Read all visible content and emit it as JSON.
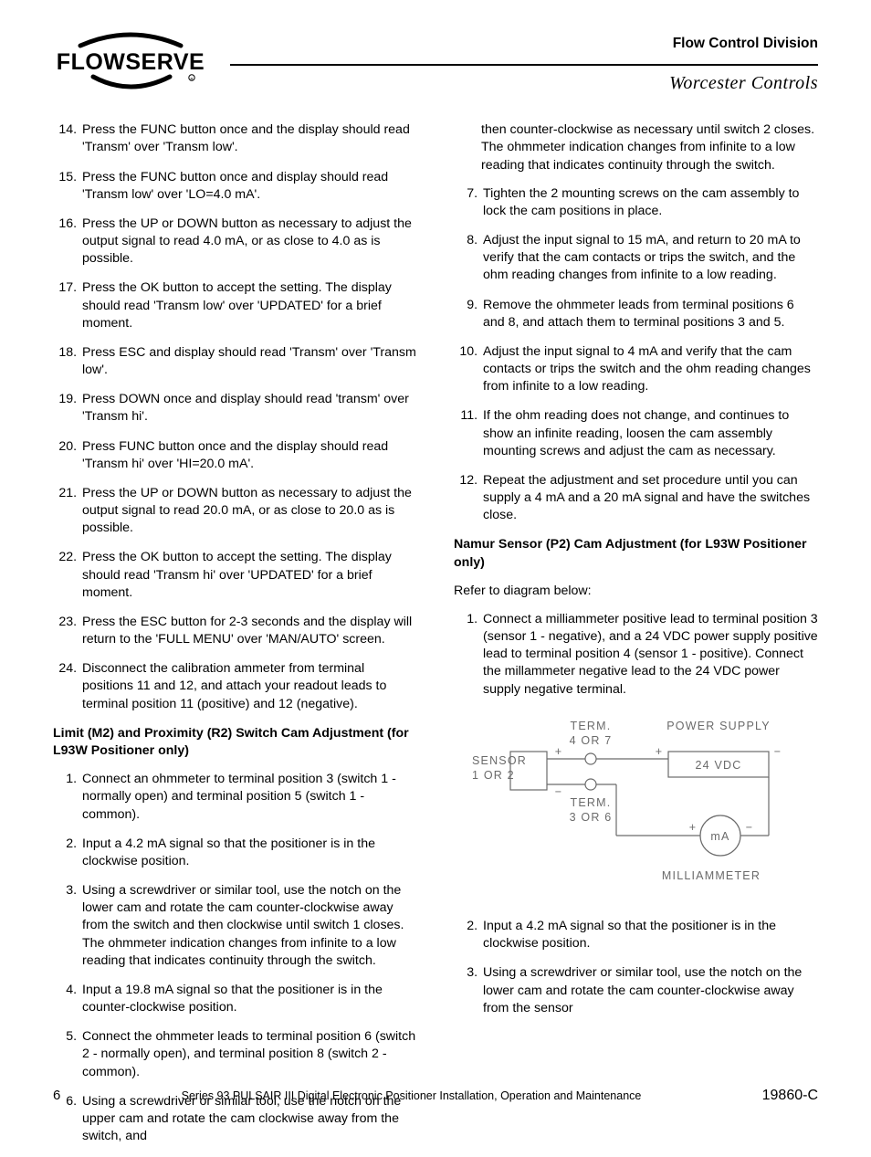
{
  "header": {
    "logo_text": "FLOWSERVE",
    "division": "Flow Control Division",
    "subtitle": "Worcester Controls"
  },
  "left_col": {
    "start": 14,
    "items": [
      "Press the FUNC button once and the display should read 'Transm' over 'Transm low'.",
      "Press the FUNC button once and display should read 'Transm low' over 'LO=4.0 mA'.",
      "Press the UP or DOWN button as necessary to adjust the output signal to read 4.0 mA, or as close to 4.0 as is possible.",
      "Press the OK button to accept the setting. The display should read 'Transm low' over 'UPDATED' for a brief moment.",
      "Press ESC and display should read 'Transm' over 'Transm low'.",
      "Press DOWN once and display should read 'transm' over 'Transm hi'.",
      "Press FUNC button once and the display should read 'Transm hi' over 'HI=20.0 mA'.",
      "Press the UP or DOWN button as necessary to adjust the output signal to read 20.0 mA, or as close to 20.0 as is possible.",
      "Press the OK button to accept the setting. The display should read 'Transm hi' over 'UPDATED' for a brief moment.",
      "Press the ESC button for 2-3 seconds and the display will return to the 'FULL MENU' over 'MAN/AUTO' screen.",
      "Disconnect the calibration ammeter from terminal positions 11 and 12, and attach your readout leads to terminal position 11 (positive) and 12 (negative)."
    ],
    "section_heading": "Limit (M2) and Proximity (R2) Switch Cam Adjustment (for L93W Positioner only)",
    "sub_start": 1,
    "sub_items": [
      "Connect an ohmmeter to terminal position 3 (switch 1 - normally open) and terminal position 5 (switch 1 - common).",
      "Input a 4.2 mA signal so that the positioner is in the clockwise position.",
      "Using a screwdriver or similar tool, use the notch on the lower cam and rotate the cam counter-clockwise away from the switch and then clockwise until switch 1 closes. The ohmmeter indication changes from infinite to a low reading that indicates continuity through the switch.",
      "Input a 19.8 mA signal so that the positioner is in the counter-clockwise position.",
      "Connect the ohmmeter leads to terminal position 6 (switch 2 - normally open), and terminal position 8 (switch 2 - common).",
      "Using a screwdriver or similar tool, use the notch on the upper cam and rotate the cam clockwise away from the switch, and"
    ]
  },
  "right_col": {
    "cont_para": "then counter-clockwise as necessary until switch 2 closes. The ohmmeter indication changes from infinite to a low reading that indicates continuity through the switch.",
    "start": 7,
    "items": [
      "Tighten the 2 mounting screws on the cam assembly to lock the cam positions in place.",
      "Adjust the input signal to 15 mA, and return to 20 mA to verify that the cam contacts or trips the switch, and the ohm reading changes from infinite to a low reading.",
      "Remove the ohmmeter leads from terminal positions 6 and 8, and attach them to terminal positions 3 and 5.",
      "Adjust the input signal to 4 mA and verify that the cam contacts or trips the switch and the ohm reading changes from infinite to a low reading.",
      "If the ohm reading does not change, and continues to show an infinite reading, loosen the cam assembly mounting screws and adjust the cam as necessary.",
      "Repeat the adjustment and set procedure until you can supply a 4 mA and a 20 mA signal and have the switches close."
    ],
    "section_heading": "Namur Sensor (P2) Cam Adjustment (for L93W Positioner only)",
    "refer": "Refer to diagram below:",
    "namur_start": 1,
    "namur_items_pre": [
      "Connect a milliammeter positive lead to terminal position 3 (sensor 1 - negative), and a 24 VDC power supply positive lead to terminal position 4 (sensor 1 - positive). Connect the millammeter negative lead to the 24 VDC power supply negative terminal."
    ],
    "namur_items_post_start": 2,
    "namur_items_post": [
      "Input a 4.2 mA signal so that the positioner is in the clockwise position.",
      "Using a screwdriver or similar tool, use the notch on the lower cam and rotate the cam counter-clockwise away from the sensor"
    ]
  },
  "diagram": {
    "labels": {
      "term_top": "TERM.",
      "term_top2": "4 OR 7",
      "power": "POWER SUPPLY",
      "sensor": "SENSOR",
      "sensor2": "1 OR 2",
      "vdc": "24 VDC",
      "term_bot": "TERM.",
      "term_bot2": "3 OR 6",
      "ma": "mA",
      "milli": "MILLIAMMETER"
    },
    "stroke": "#6a6a6a",
    "text_color": "#6a6a6a",
    "font_size": 12.5
  },
  "footer": {
    "page": "6",
    "title": "Series 93 PULSAIR III Digital Electronic Positioner Installation, Operation and Maintenance",
    "doc": "19860-C"
  }
}
